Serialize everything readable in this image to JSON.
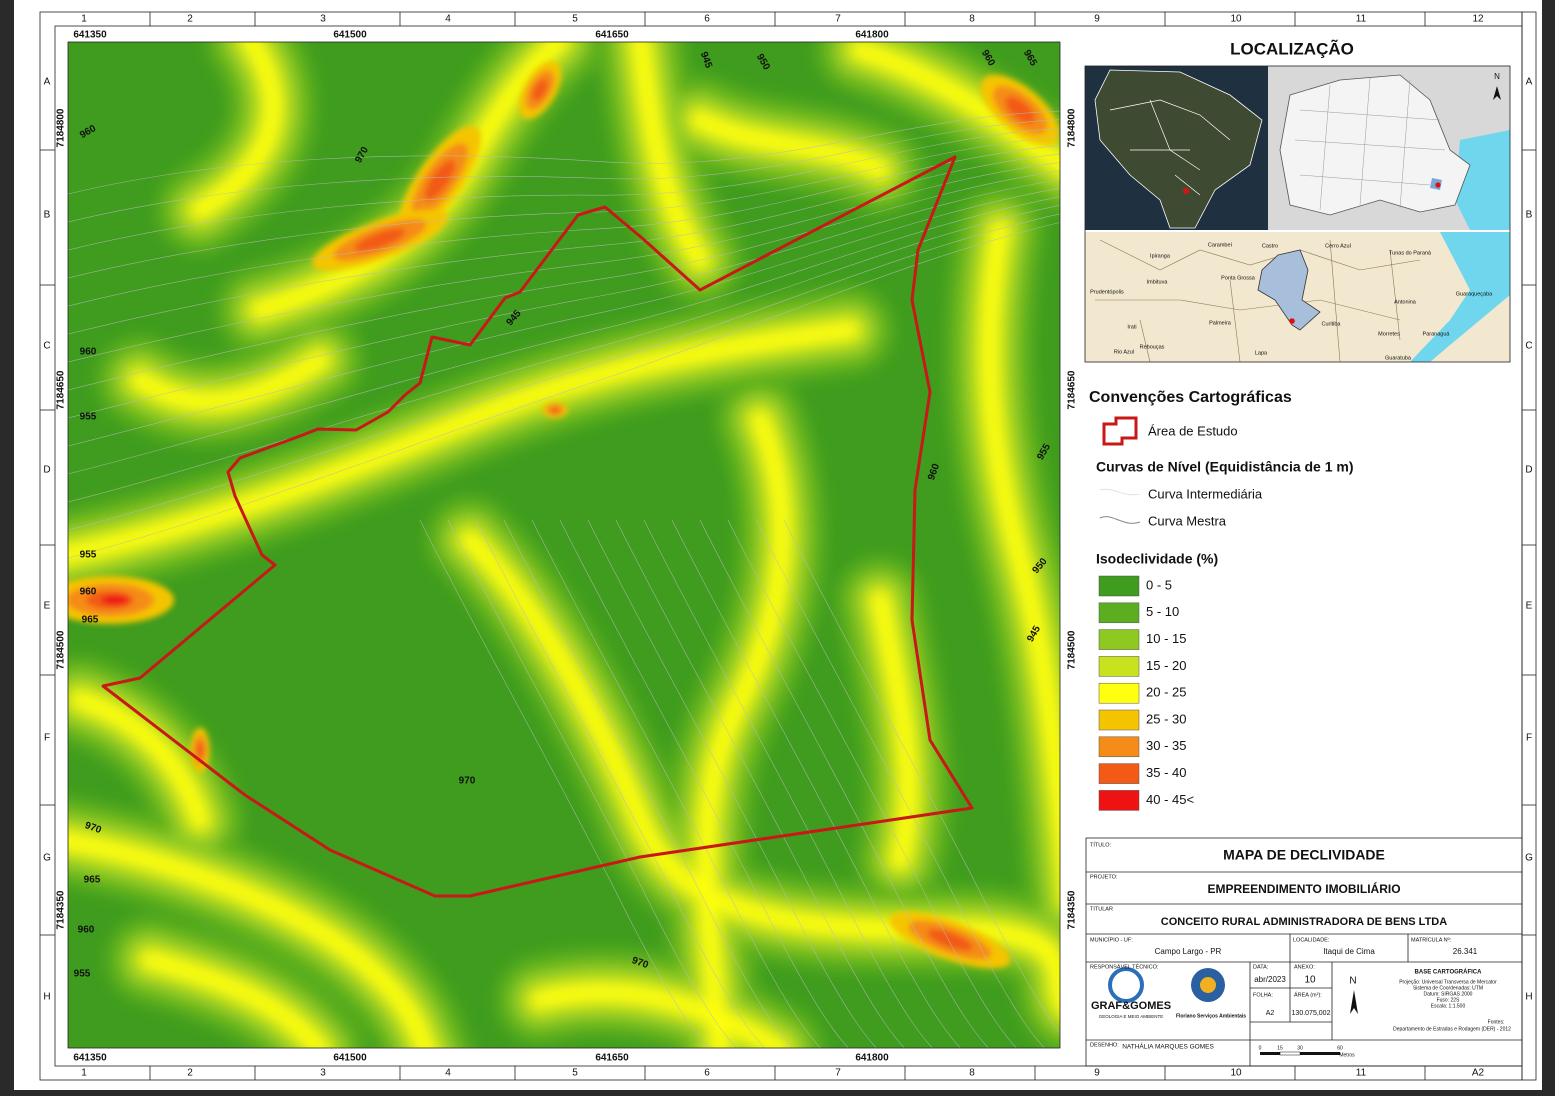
{
  "frame": {
    "columns": [
      "1",
      "2",
      "3",
      "4",
      "5",
      "6",
      "7",
      "8",
      "9",
      "10",
      "11",
      "12"
    ],
    "sheet_size": "A2",
    "rows": [
      "A",
      "B",
      "C",
      "D",
      "E",
      "F",
      "G",
      "H"
    ]
  },
  "map": {
    "x_coords": [
      "641350",
      "641500",
      "641650",
      "641800"
    ],
    "y_coords": [
      "7184800",
      "7184650",
      "7184500",
      "7184350"
    ],
    "contour_labels": [
      "960",
      "970",
      "945",
      "950",
      "960",
      "965",
      "960",
      "955",
      "945",
      "960",
      "955",
      "955",
      "960",
      "965",
      "950",
      "945",
      "970",
      "970",
      "965",
      "960",
      "955",
      "970"
    ]
  },
  "location": {
    "title": "LOCALIZAÇÃO",
    "north": "N",
    "places": [
      "Ipiranga",
      "Carambeí",
      "Castro",
      "Cerro Azul",
      "Tunas do Paraná",
      "Prudentópolis",
      "Imbituva",
      "Ponta Grossa",
      "Guaraqueçaba",
      "Antonina",
      "Palmeira",
      "Irati",
      "Curitiba",
      "Morretes",
      "Paranaguá",
      "Rebouças",
      "Rio Azul",
      "Lapa",
      "Guaratuba"
    ]
  },
  "legend": {
    "title": "Convenções Cartográficas",
    "study_area": "Área de Estudo",
    "contours_title": "Curvas de Nível (Equidistância de 1 m)",
    "contour_intermediate": "Curva Intermediária",
    "contour_master": "Curva Mestra",
    "slope_title": "Isodeclividade (%)",
    "slope_classes": [
      {
        "label": "0 - 5",
        "color": "#3f9c1e"
      },
      {
        "label": "5 - 10",
        "color": "#5aae1f"
      },
      {
        "label": "10 - 15",
        "color": "#8dc920"
      },
      {
        "label": "15 - 20",
        "color": "#c8e31e"
      },
      {
        "label": "20 - 25",
        "color": "#ffff10"
      },
      {
        "label": "25 - 30",
        "color": "#f5c400"
      },
      {
        "label": "30 - 35",
        "color": "#f58c18"
      },
      {
        "label": "35 - 40",
        "color": "#f25a16"
      },
      {
        "label": "40 - 45<",
        "color": "#ef1212"
      }
    ]
  },
  "title_block": {
    "title_label": "TÍTULO:",
    "title": "MAPA DE DECLIVIDADE",
    "project_label": "PROJETO:",
    "project": "EMPREENDIMENTO IMOBILIÁRIO",
    "owner_label": "TITULAR",
    "owner": "CONCEITO RURAL ADMINISTRADORA DE BENS LTDA",
    "municipality_label": "MUNICÍPIO - UF:",
    "municipality": "Campo Largo - PR",
    "locality_label": "LOCALIDADE:",
    "locality": "Itaqui de Cima",
    "registry_label": "MATRÍCULA Nº:",
    "registry": "26.341",
    "responsible_label": "RESPONSÁVEL TÉCNICO:",
    "date_label": "DATA:",
    "date": "abr/2023",
    "annex_label": "ANEXO:",
    "annex": "10",
    "sheet_label": "FOLHA:",
    "sheet": "A2",
    "area_label": "ÁREA (m²):",
    "area": "130.075,002",
    "logo1": "GRAF&GOMES",
    "logo1_sub": "GEOLOGIA E MEIO AMBIENTE",
    "logo2": "Floriano Serviços Ambientais",
    "north": "N",
    "base_title": "BASE CARTOGRÁFICA",
    "base_lines": [
      "Projeção: Universal Transversa de Mercator",
      "Sistema de Coordenadas: UTM",
      "Datum: SIRGAS 2000",
      "Fuso: 22S",
      "Escala: 1:1.500"
    ],
    "sources_label": "Fontes:",
    "sources": "Departamento de Estradas e Rodagem (DER) - 2012",
    "drawing_label": "DESENHO:",
    "drawer": "NATHÁLIA MARQUES GOMES",
    "scale_ticks": [
      "0",
      "15",
      "30",
      "60"
    ],
    "scale_unit": "Metros"
  }
}
